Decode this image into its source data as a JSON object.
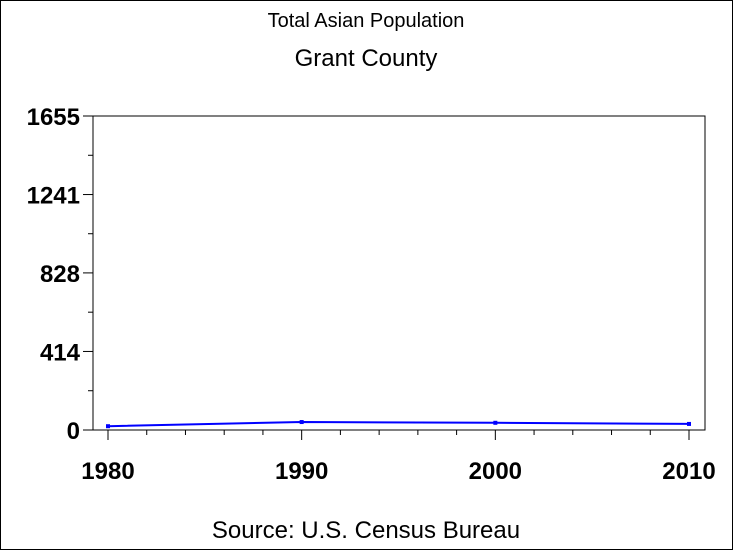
{
  "chart_data": {
    "type": "line",
    "title": "Total Asian Population",
    "subtitle": "Grant County",
    "footnote": "Source: U.S. Census Bureau",
    "xlabel": "",
    "ylabel": "",
    "x_ticks": [
      "1980",
      "1990",
      "2000",
      "2010"
    ],
    "y_ticks": [
      "0",
      "414",
      "828",
      "1241",
      "1655"
    ],
    "xlim": [
      1980,
      2010
    ],
    "ylim": [
      0,
      1655
    ],
    "grid": false,
    "series": [
      {
        "color": "#0000ff",
        "points": [
          {
            "x": 1980,
            "y": 20
          },
          {
            "x": 1990,
            "y": 42
          },
          {
            "x": 2000,
            "y": 38
          },
          {
            "x": 2010,
            "y": 32
          }
        ]
      }
    ]
  }
}
